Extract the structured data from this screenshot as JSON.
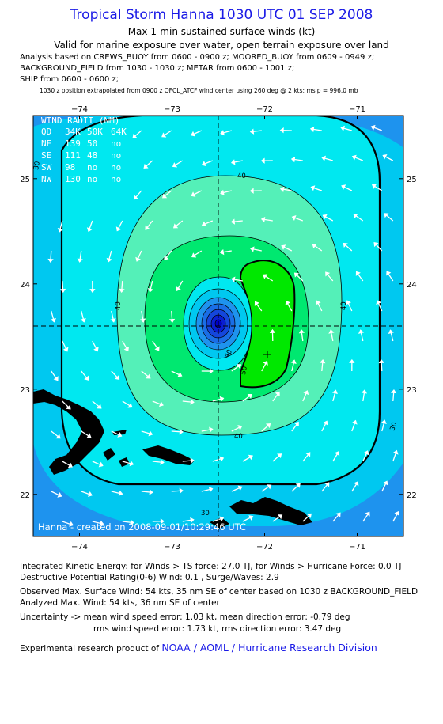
{
  "header": {
    "title": "Tropical Storm Hanna 1030 UTC 01 SEP 2008",
    "subtitle1": "Max 1-min sustained surface winds (kt)",
    "subtitle2": "Valid for marine exposure over water, open terrain exposure over land",
    "analysis_line1": "Analysis based on  CREWS_BUOY from 0600 - 0900 z;  MOORED_BUOY from 0609 - 0949 z;",
    "analysis_line2": "BACKGROUND_FIELD from 1030 - 1030 z;  METAR from 0600 - 1001 z;",
    "analysis_line3": "SHIP from 0600 - 0600 z;",
    "position_note": "1030 z position extrapolated from 0900 z OFCL_ATCF wind center using 260 deg @ 2 kts; mslp = 996.0 mb"
  },
  "wind_radii": {
    "title": "WIND RADII (NM)",
    "header": [
      "QD",
      "34K",
      "50K",
      "64K"
    ],
    "rows": [
      [
        "NE",
        "139",
        "50",
        "no"
      ],
      [
        "SE",
        "111",
        "48",
        "no"
      ],
      [
        "SW",
        "98",
        "no",
        "no"
      ],
      [
        "NW",
        "130",
        "no",
        "no"
      ]
    ]
  },
  "credit": "Hanna - created on 2008-09-01/10:29:46 UTC",
  "chart_data": {
    "type": "contour",
    "title": "Tropical Storm Hanna 1030 UTC 01 SEP 2008",
    "x_ticks": [
      -74,
      -73,
      -72,
      -71
    ],
    "y_ticks": [
      22,
      23,
      24,
      25
    ],
    "xlim": [
      -74.5,
      -70.5
    ],
    "ylim": [
      21.6,
      25.6
    ],
    "center": {
      "lon": -72.45,
      "lat": 23.62
    },
    "max_wind_location": {
      "lon": -71.95,
      "lat": 23.33
    },
    "contour_labels": [
      "30",
      "30",
      "30",
      "40",
      "40",
      "40",
      "40",
      "40",
      "50"
    ],
    "colors": {
      "outer": "#1e93ee",
      "c30": "#00c8f0",
      "c35": "#00e8f0",
      "c40": "#54f0b8",
      "c45": "#00e870",
      "c50": "#00e800",
      "core": "#0000c8"
    }
  },
  "footer": {
    "ike": "Integrated Kinetic Energy:  for Winds > TS force: 27.0 TJ,  for Winds > Hurricane Force: 0.0 TJ",
    "dpr": "Destructive Potential Rating(0-6)   Wind: 0.1 , Surge/Waves: 2.9",
    "observed": "Observed Max. Surface Wind: 54 kts, 35 nm SE of center based on 1030 z BACKGROUND_FIELD",
    "analyzed": "Analyzed Max. Wind: 54 kts, 36 nm SE of center",
    "uncert1": "Uncertainty -> mean wind speed error: 1.03 kt,   mean direction error: -0.79 deg",
    "uncert2": "rms wind speed error: 1.73 kt,   rms direction error: 3.47 deg",
    "product_prefix": "Experimental research product of ",
    "product_org": "NOAA / AOML / Hurricane Research Division"
  }
}
